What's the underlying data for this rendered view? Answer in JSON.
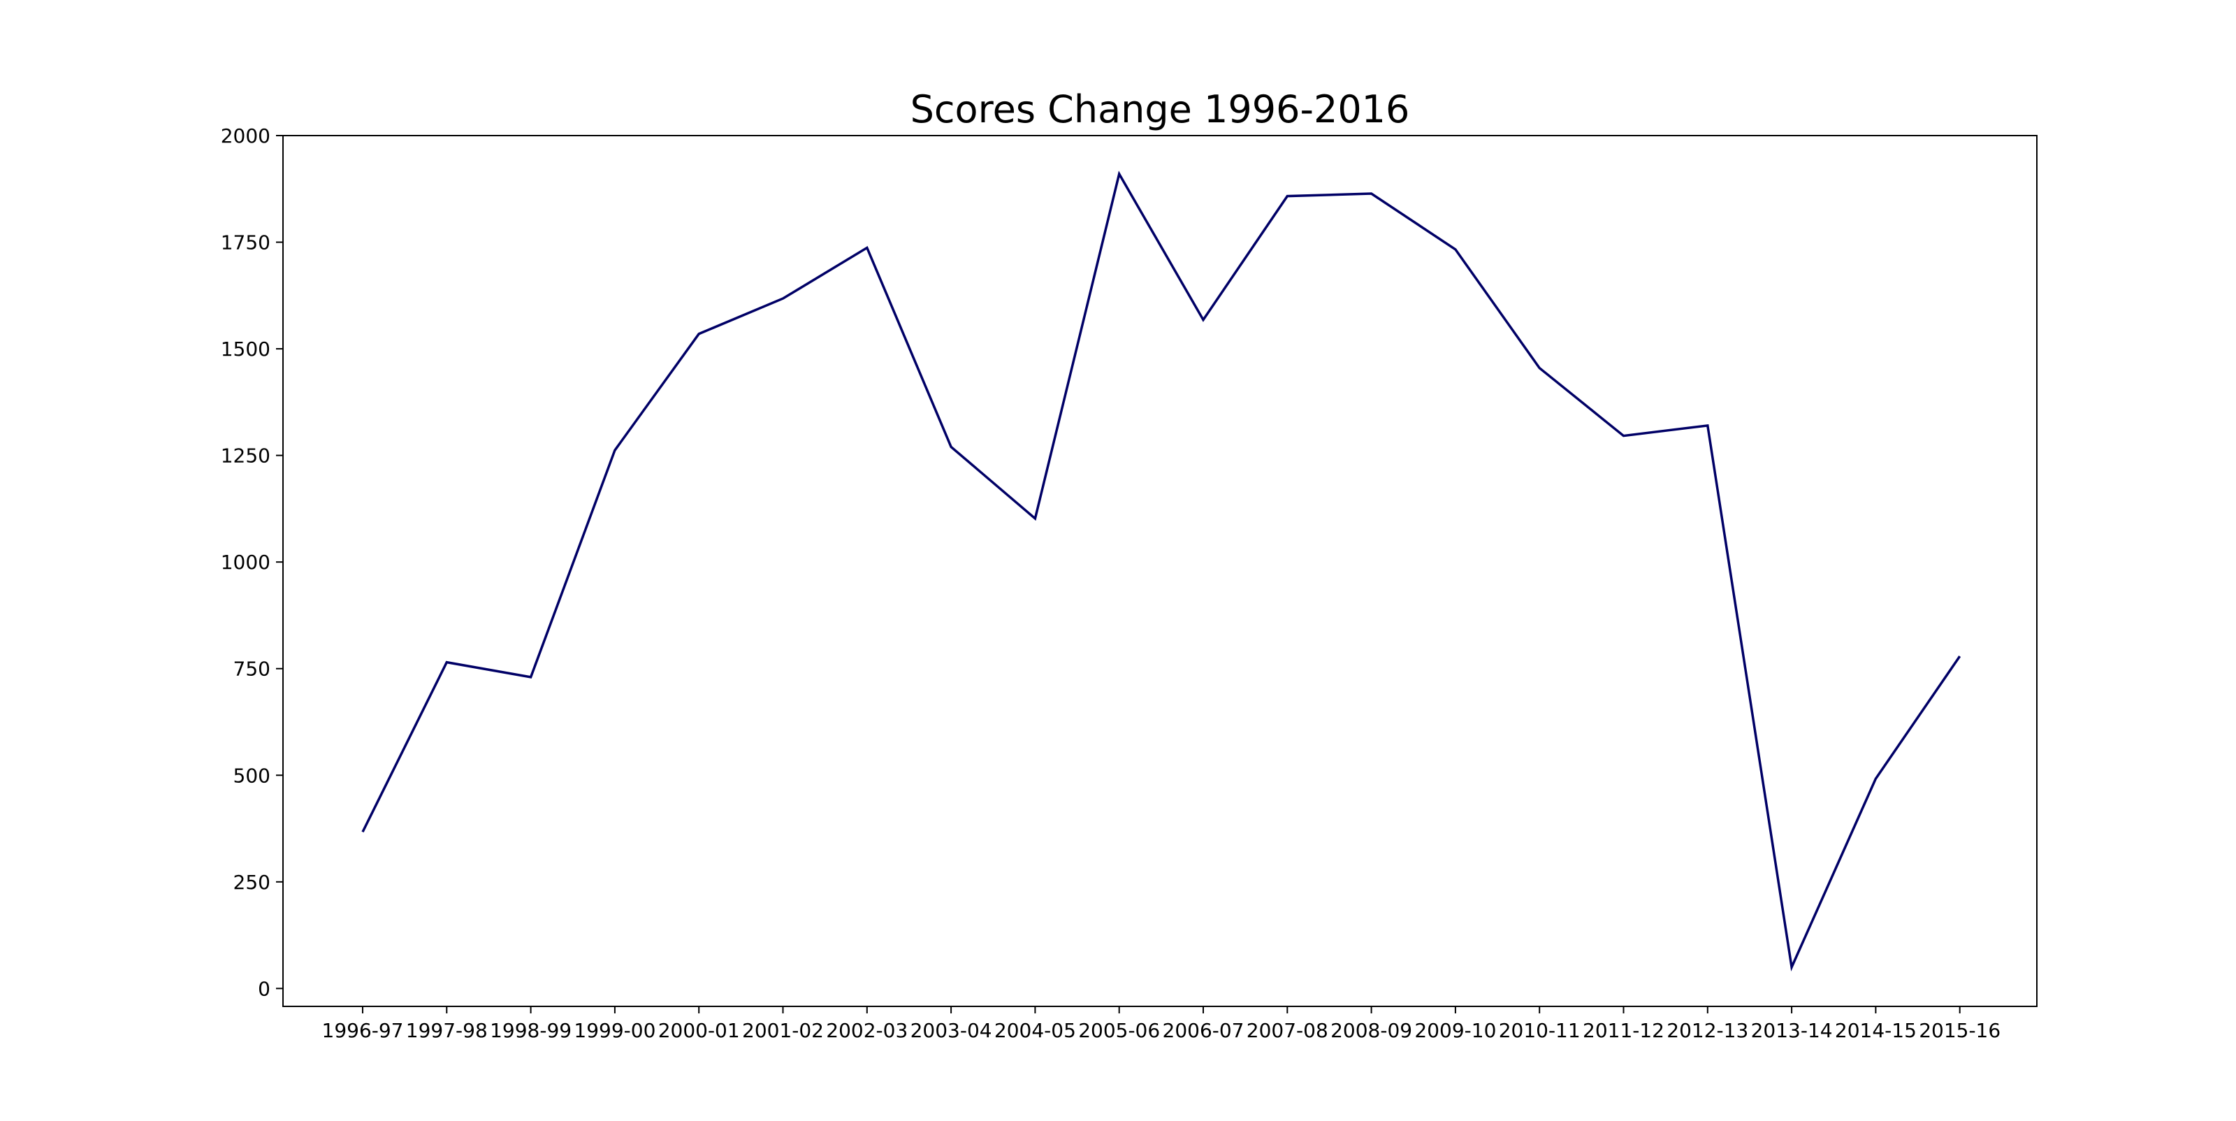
{
  "chart_data": {
    "type": "line",
    "title": "Scores Change 1996-2016",
    "xlabel": "",
    "ylabel": "",
    "categories": [
      "1996-97",
      "1997-98",
      "1998-99",
      "1999-00",
      "2000-01",
      "2001-02",
      "2002-03",
      "2003-04",
      "2004-05",
      "2005-06",
      "2006-07",
      "2007-08",
      "2008-09",
      "2009-10",
      "2010-11",
      "2011-12",
      "2012-13",
      "2013-14",
      "2014-15",
      "2015-16"
    ],
    "series": [
      {
        "values": [
          367,
          765,
          730,
          1262,
          1535,
          1618,
          1737,
          1270,
          1102,
          1910,
          1568,
          1858,
          1864,
          1733,
          1455,
          1296,
          1320,
          50,
          492,
          779
        ],
        "color": "#000066"
      }
    ],
    "ylim": [
      -42,
      2000
    ],
    "yticks": [
      0,
      250,
      500,
      750,
      1000,
      1250,
      1500,
      1750,
      2000
    ],
    "grid": false,
    "legend": "none"
  }
}
